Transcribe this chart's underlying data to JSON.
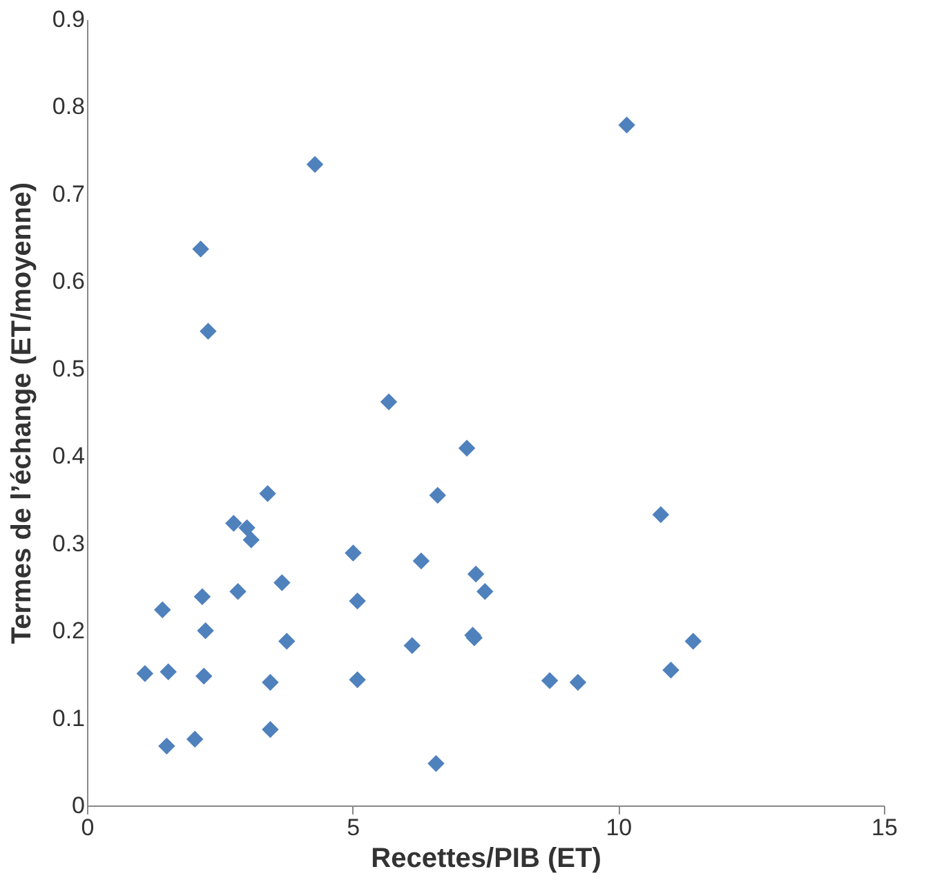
{
  "chart_data": {
    "type": "scatter",
    "xlabel": "Recettes/PIB (ET)",
    "ylabel": "Termes de l’échange (ET/moyenne)",
    "x": [
      10.16,
      4.29,
      2.14,
      2.28,
      5.68,
      7.15,
      3.4,
      6.6,
      10.8,
      2.76,
      3.01,
      3.09,
      5.01,
      6.29,
      7.32,
      7.49,
      2.84,
      3.67,
      2.17,
      5.09,
      1.42,
      2.23,
      3.76,
      7.26,
      7.29,
      11.41,
      6.12,
      1.09,
      1.53,
      2.2,
      10.99,
      3.45,
      5.09,
      8.71,
      9.24,
      3.45,
      2.03,
      1.5,
      6.57
    ],
    "series": [
      {
        "color": "#4f81bd",
        "values": [
          0.779,
          0.734,
          0.637,
          0.543,
          0.462,
          0.409,
          0.357,
          0.355,
          0.333,
          0.323,
          0.318,
          0.304,
          0.289,
          0.28,
          0.265,
          0.245,
          0.245,
          0.255,
          0.239,
          0.234,
          0.224,
          0.2,
          0.188,
          0.195,
          0.192,
          0.188,
          0.183,
          0.151,
          0.153,
          0.148,
          0.155,
          0.141,
          0.144,
          0.143,
          0.141,
          0.087,
          0.076,
          0.068,
          0.048
        ]
      }
    ],
    "xlim": [
      0,
      15
    ],
    "xticks": [
      0,
      5,
      10,
      15
    ],
    "ylim": [
      0,
      0.9
    ],
    "yticks": [
      0,
      0.1,
      0.2,
      0.3,
      0.4,
      0.5,
      0.6,
      0.7,
      0.8,
      0.9
    ],
    "marker": "diamond",
    "grid": false
  }
}
